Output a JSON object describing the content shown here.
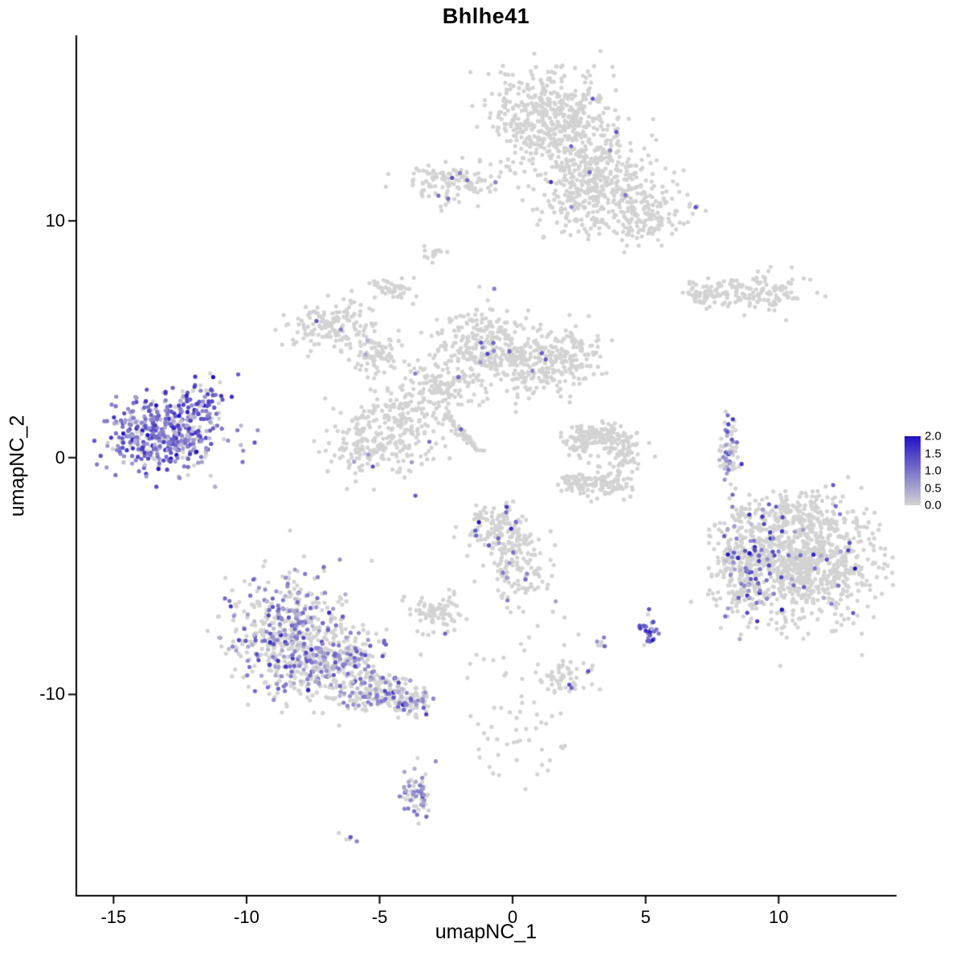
{
  "chart_data": {
    "type": "scatter",
    "title": "Bhlhe41",
    "xlabel": "umapNC_1",
    "ylabel": "umapNC_2",
    "xlim": [
      -16.4,
      14.4
    ],
    "ylim": [
      -18.5,
      17.8
    ],
    "x_ticks": [
      -15,
      -10,
      -5,
      0,
      5,
      10
    ],
    "y_ticks": [
      10,
      0,
      -10
    ],
    "grid": false,
    "background": "#FFFFFF",
    "axis_color": "#000000",
    "legend": {
      "position": "right",
      "ticks": [
        "2.0",
        "1.5",
        "1.0",
        "0.5",
        "0.0"
      ],
      "vmin": 0.0,
      "vmax": 2.0
    },
    "colors": {
      "low": "#D3D3D3",
      "high": "#2111C4"
    },
    "point_radius": 2.6,
    "seed": 42,
    "clusters": [
      {
        "name": "top-main-1",
        "cx": 1.4,
        "cy": 14.3,
        "sx": 1.2,
        "sy": 1.0,
        "n": 480,
        "expr_frac": 0.004,
        "expr_mean": 1.2,
        "expr_sd": 0.3
      },
      {
        "name": "top-main-2",
        "cx": 3.2,
        "cy": 12.4,
        "sx": 1.0,
        "sy": 0.9,
        "n": 260,
        "expr_frac": 0.006,
        "expr_mean": 1.2,
        "expr_sd": 0.3
      },
      {
        "name": "top-right-arm",
        "cx": 4.7,
        "cy": 10.4,
        "sx": 0.9,
        "sy": 0.7,
        "n": 200,
        "expr_frac": 0.01,
        "expr_mean": 1.0,
        "expr_sd": 0.4
      },
      {
        "name": "top-lower",
        "cx": 2.3,
        "cy": 10.8,
        "sx": 0.7,
        "sy": 0.8,
        "n": 130,
        "expr_frac": 0.008,
        "expr_mean": 1.0,
        "expr_sd": 0.4
      },
      {
        "name": "top-left-small",
        "cx": -2.2,
        "cy": 11.6,
        "sx": 0.9,
        "sy": 0.45,
        "n": 120,
        "expr_frac": 0.01,
        "expr_mean": 0.9,
        "expr_sd": 0.3
      },
      {
        "name": "tiny-upper-left",
        "cx": -3.0,
        "cy": 8.7,
        "sx": 0.25,
        "sy": 0.2,
        "n": 14,
        "expr_frac": 0
      },
      {
        "name": "blob-upper-left",
        "cx": -4.6,
        "cy": 7.2,
        "sx": 0.4,
        "sy": 0.25,
        "n": 45,
        "expr_frac": 0
      },
      {
        "name": "right-strip-a",
        "cx": 7.3,
        "cy": 6.9,
        "sx": 0.5,
        "sy": 0.3,
        "n": 60,
        "expr_frac": 0.03,
        "expr_mean": 1.0,
        "expr_sd": 0.3
      },
      {
        "name": "right-strip-b",
        "cx": 9.2,
        "cy": 7.0,
        "sx": 0.9,
        "sy": 0.4,
        "n": 130,
        "expr_frac": 0
      },
      {
        "name": "mid-upper-left-lobe",
        "cx": -6.7,
        "cy": 5.6,
        "sx": 0.85,
        "sy": 0.5,
        "n": 150,
        "expr_frac": 0.01,
        "expr_mean": 0.7,
        "expr_sd": 0.3
      },
      {
        "name": "mid-left-small",
        "cx": -5.3,
        "cy": 4.4,
        "sx": 0.5,
        "sy": 0.4,
        "n": 70,
        "expr_frac": 0.01,
        "expr_mean": 0.7,
        "expr_sd": 0.3
      },
      {
        "name": "mid-center-top",
        "cx": -1.2,
        "cy": 4.7,
        "sx": 0.9,
        "sy": 0.8,
        "n": 260,
        "expr_frac": 0.012,
        "expr_mean": 0.9,
        "expr_sd": 0.4
      },
      {
        "name": "mid-center-right",
        "cx": 0.8,
        "cy": 3.8,
        "sx": 0.8,
        "sy": 0.7,
        "n": 170,
        "expr_frac": 0.01,
        "expr_mean": 0.9,
        "expr_sd": 0.4
      },
      {
        "name": "mid-right-lobe",
        "cx": 2.3,
        "cy": 4.4,
        "sx": 0.6,
        "sy": 0.6,
        "n": 110,
        "expr_frac": 0.01,
        "expr_mean": 0.9,
        "expr_sd": 0.4
      },
      {
        "name": "mid-center",
        "cx": -2.8,
        "cy": 2.9,
        "sx": 0.7,
        "sy": 0.6,
        "n": 140,
        "expr_frac": 0.015,
        "expr_mean": 0.9,
        "expr_sd": 0.4
      },
      {
        "name": "mid-lower-left",
        "cx": -4.4,
        "cy": 1.1,
        "sx": 0.8,
        "sy": 0.9,
        "n": 200,
        "expr_frac": 0.02,
        "expr_mean": 0.8,
        "expr_sd": 0.4
      },
      {
        "name": "mid-lower-left-sparse",
        "cx": -5.9,
        "cy": 0.6,
        "sx": 0.6,
        "sy": 0.8,
        "n": 90,
        "expr_frac": 0.02,
        "expr_mean": 0.8,
        "expr_sd": 0.4
      },
      {
        "name": "mid-streak",
        "shape": "line",
        "cx": -2.6,
        "cy": 1.9,
        "x2": -1.2,
        "y2": 0.2,
        "sx": 0.07,
        "n": 55,
        "expr_frac": 0.03,
        "expr_mean": 0.9,
        "expr_sd": 0.4
      },
      {
        "name": "left-expressing-main",
        "cx": -13.2,
        "cy": 1.0,
        "sx": 1.05,
        "sy": 0.75,
        "n": 430,
        "expr_frac": 0.85,
        "expr_mean": 1.0,
        "expr_sd": 0.45
      },
      {
        "name": "left-expressing-arm",
        "cx": -11.4,
        "cy": 2.4,
        "sx": 0.45,
        "sy": 0.5,
        "n": 60,
        "expr_frac": 0.7,
        "expr_mean": 1.2,
        "expr_sd": 0.5
      },
      {
        "name": "vertical-sliver",
        "cx": 8.15,
        "cy": 0.1,
        "sx": 0.18,
        "sy": 0.75,
        "n": 70,
        "expr_frac": 0.3,
        "expr_mean": 0.9,
        "expr_sd": 0.4
      },
      {
        "name": "c-arc-1",
        "cx": 2.6,
        "cy": 0.7,
        "sx": 0.4,
        "sy": 0.35,
        "n": 70,
        "expr_frac": 0.01,
        "expr_mean": 0.8,
        "expr_sd": 0.3
      },
      {
        "name": "c-arc-2",
        "cx": 3.6,
        "cy": 0.9,
        "sx": 0.45,
        "sy": 0.3,
        "n": 80,
        "expr_frac": 0
      },
      {
        "name": "c-arc-3",
        "cx": 4.3,
        "cy": 0.1,
        "sx": 0.3,
        "sy": 0.4,
        "n": 60,
        "expr_frac": 0
      },
      {
        "name": "c-arc-4",
        "cx": 3.6,
        "cy": -1.0,
        "sx": 0.45,
        "sy": 0.3,
        "n": 80,
        "expr_frac": 0
      },
      {
        "name": "c-arc-5",
        "cx": 2.5,
        "cy": -1.1,
        "sx": 0.35,
        "sy": 0.3,
        "n": 55,
        "expr_frac": 0
      },
      {
        "name": "right-main",
        "cx": 10.9,
        "cy": -4.4,
        "sx": 1.4,
        "sy": 1.2,
        "n": 850,
        "expr_frac": 0.04,
        "expr_mean": 1.1,
        "expr_sd": 0.5
      },
      {
        "name": "right-left-edge",
        "cx": 8.7,
        "cy": -4.7,
        "sx": 0.55,
        "sy": 1.1,
        "n": 230,
        "expr_frac": 0.22,
        "expr_mean": 1.0,
        "expr_sd": 0.5
      },
      {
        "name": "right-top-edge",
        "cx": 10.4,
        "cy": -2.5,
        "sx": 1.1,
        "sy": 0.45,
        "n": 180,
        "expr_frac": 0.05,
        "expr_mean": 1.1,
        "expr_sd": 0.5
      },
      {
        "name": "bottom-left-main",
        "cx": -8.4,
        "cy": -7.5,
        "sx": 1.15,
        "sy": 1.25,
        "n": 520,
        "expr_frac": 0.4,
        "expr_mean": 0.8,
        "expr_sd": 0.4
      },
      {
        "name": "bottom-left-mid",
        "cx": -6.6,
        "cy": -8.8,
        "sx": 0.95,
        "sy": 0.75,
        "n": 280,
        "expr_frac": 0.35,
        "expr_mean": 0.8,
        "expr_sd": 0.4
      },
      {
        "name": "bottom-left-tail",
        "cx": -5.0,
        "cy": -9.9,
        "sx": 0.7,
        "sy": 0.45,
        "n": 140,
        "expr_frac": 0.3,
        "expr_mean": 0.8,
        "expr_sd": 0.4
      },
      {
        "name": "bottom-left-tip",
        "cx": -3.9,
        "cy": -10.4,
        "sx": 0.4,
        "sy": 0.3,
        "n": 70,
        "expr_frac": 0.3,
        "expr_mean": 0.8,
        "expr_sd": 0.4
      },
      {
        "name": "center-low-a",
        "cx": -0.5,
        "cy": -3.0,
        "sx": 0.6,
        "sy": 0.6,
        "n": 140,
        "expr_frac": 0.05,
        "expr_mean": 1.2,
        "expr_sd": 0.4
      },
      {
        "name": "center-low-b",
        "cx": 0.3,
        "cy": -4.8,
        "sx": 0.55,
        "sy": 0.8,
        "n": 120,
        "expr_frac": 0.04,
        "expr_mean": 1.0,
        "expr_sd": 0.4
      },
      {
        "name": "blob-left-of-center",
        "cx": -2.8,
        "cy": -6.6,
        "sx": 0.5,
        "sy": 0.4,
        "n": 80,
        "expr_frac": 0
      },
      {
        "name": "purple-blob",
        "cx": 5.15,
        "cy": -7.3,
        "sx": 0.18,
        "sy": 0.3,
        "n": 30,
        "expr_frac": 0.85,
        "expr_mean": 1.1,
        "expr_sd": 0.4
      },
      {
        "name": "dot-pair",
        "cx": 3.3,
        "cy": -7.8,
        "sx": 0.12,
        "sy": 0.1,
        "n": 6,
        "expr_frac": 0.3,
        "expr_mean": 0.8,
        "expr_sd": 0.3
      },
      {
        "name": "small-bottom-mid",
        "cx": 2.1,
        "cy": -9.2,
        "sx": 0.45,
        "sy": 0.4,
        "n": 60,
        "expr_frac": 0.05,
        "expr_mean": 0.9,
        "expr_sd": 0.4
      },
      {
        "name": "sparse-trail",
        "cx": 0.3,
        "cy": -11.8,
        "sx": 0.9,
        "sy": 1.1,
        "n": 45,
        "expr_frac": 0.03,
        "expr_mean": 0.9,
        "expr_sd": 0.3
      },
      {
        "name": "scatter-misc",
        "cx": 0.5,
        "cy": -8.0,
        "sx": 2.5,
        "sy": 1.5,
        "n": 18,
        "expr_frac": 0.05,
        "expr_mean": 0.9,
        "expr_sd": 0.3
      },
      {
        "name": "bottom-small",
        "cx": -3.6,
        "cy": -14.2,
        "sx": 0.3,
        "sy": 0.6,
        "n": 65,
        "expr_frac": 0.35,
        "expr_mean": 0.7,
        "expr_sd": 0.3
      },
      {
        "name": "bottom-tiny",
        "cx": -6.2,
        "cy": -16.0,
        "sx": 0.2,
        "sy": 0.12,
        "n": 6,
        "expr_frac": 0.2,
        "expr_mean": 0.8,
        "expr_sd": 0.3
      }
    ]
  }
}
